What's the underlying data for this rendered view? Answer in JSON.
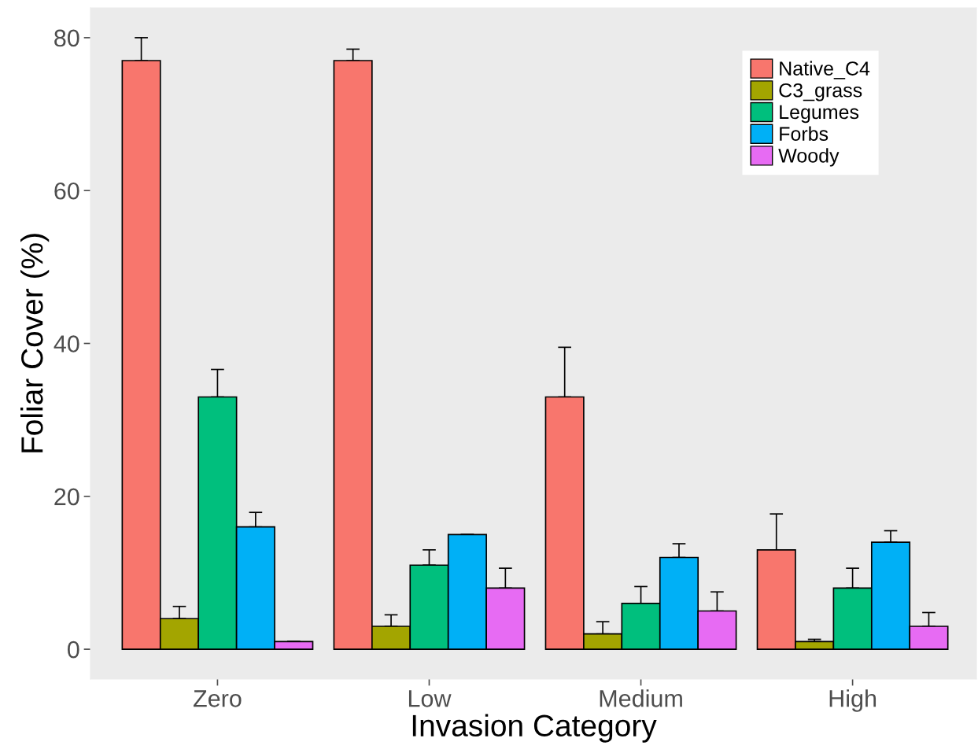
{
  "chart_data": {
    "type": "bar",
    "xlabel": "Invasion Category",
    "ylabel": "Foliar Cover (%)",
    "categories": [
      "Zero",
      "Low",
      "Medium",
      "High"
    ],
    "series": [
      {
        "name": "Native_C4",
        "color": "#f8766d",
        "values": [
          77,
          77,
          33,
          13
        ],
        "errors": [
          [
            77,
            80
          ],
          [
            77,
            78.5
          ],
          [
            33,
            39.5
          ],
          [
            13,
            17.7
          ]
        ]
      },
      {
        "name": "C3_grass",
        "color": "#a3a500",
        "values": [
          4,
          3,
          2,
          1
        ],
        "errors": [
          [
            4,
            5.6
          ],
          [
            3,
            4.5
          ],
          [
            2,
            3.6
          ],
          [
            1,
            1.3
          ]
        ]
      },
      {
        "name": "Legumes",
        "color": "#00bf7d",
        "values": [
          33,
          11,
          6,
          8
        ],
        "errors": [
          [
            33,
            36.6
          ],
          [
            11,
            13
          ],
          [
            6,
            8.2
          ],
          [
            8,
            10.6
          ]
        ]
      },
      {
        "name": "Forbs",
        "color": "#00b0f6",
        "values": [
          16,
          15,
          12,
          14
        ],
        "errors": [
          [
            16,
            17.9
          ],
          [
            15,
            15
          ],
          [
            12,
            13.8
          ],
          [
            14,
            15.5
          ]
        ]
      },
      {
        "name": "Woody",
        "color": "#e76bf3",
        "values": [
          1,
          8,
          5,
          3
        ],
        "errors": [
          [
            1,
            1
          ],
          [
            8,
            10.6
          ],
          [
            5,
            7.5
          ],
          [
            3,
            4.8
          ]
        ]
      }
    ],
    "ylim": [
      -3.9,
      83.9
    ],
    "yticks": [
      0,
      20,
      40,
      60,
      80
    ],
    "grid": false,
    "legend": "top right"
  }
}
